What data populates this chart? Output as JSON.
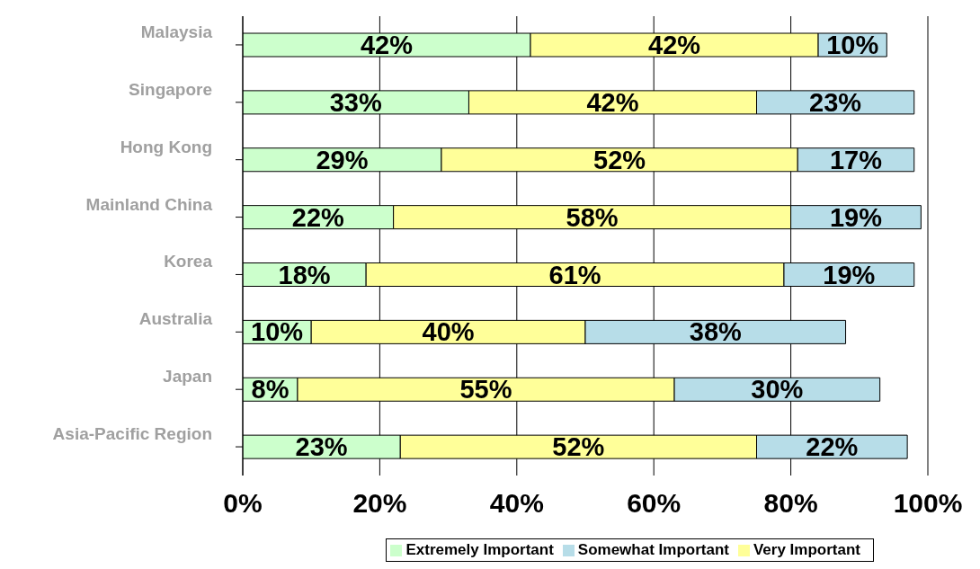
{
  "chart_data": {
    "type": "bar",
    "orientation": "horizontal",
    "stacked": true,
    "categories": [
      "Malaysia",
      "Singapore",
      "Hong Kong",
      "Mainland China",
      "Korea",
      "Australia",
      "Japan",
      "Asia-Pacific Region"
    ],
    "series": [
      {
        "name": "Extremely Important",
        "color": "#ccffcc",
        "values": [
          42,
          33,
          29,
          22,
          18,
          10,
          8,
          23
        ],
        "value_labels": [
          "42%",
          "33%",
          "29%",
          "22%",
          "18%",
          "10%",
          "8%",
          "23%"
        ]
      },
      {
        "name": "Very Important",
        "color": "#ffff99",
        "values": [
          42,
          42,
          52,
          58,
          61,
          40,
          55,
          52
        ],
        "value_labels": [
          "42%",
          "42%",
          "52%",
          "58%",
          "61%",
          "40%",
          "55%",
          "52%"
        ]
      },
      {
        "name": "Somewhat Important",
        "color": "#b7dde8",
        "values": [
          10,
          23,
          17,
          19,
          19,
          38,
          30,
          22
        ],
        "value_labels": [
          "10%",
          "23%",
          "17%",
          "19%",
          "19%",
          "38%",
          "30%",
          "22%"
        ]
      }
    ],
    "xlim": [
      0,
      100
    ],
    "xticks": [
      {
        "value": 0,
        "label": "0%"
      },
      {
        "value": 20,
        "label": "20%"
      },
      {
        "value": 40,
        "label": "40%"
      },
      {
        "value": 60,
        "label": "60%"
      },
      {
        "value": 80,
        "label": "80%"
      },
      {
        "value": 100,
        "label": "100%"
      }
    ],
    "grid": "x",
    "legend": "bottom right"
  }
}
